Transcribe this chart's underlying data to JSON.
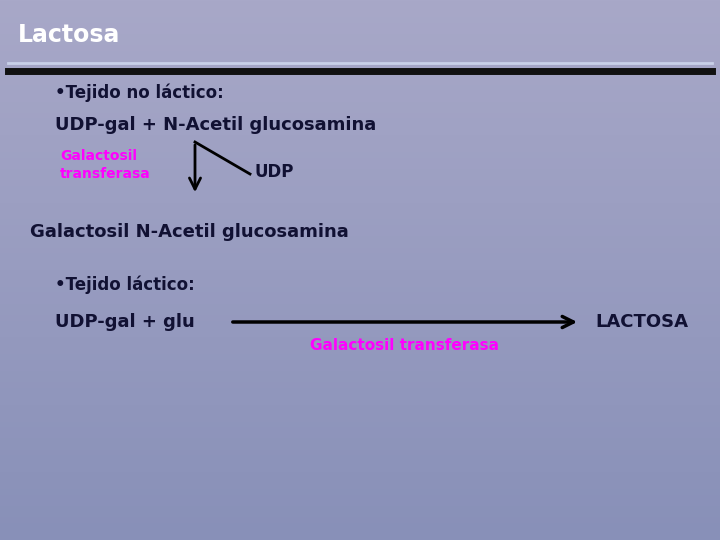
{
  "title": "Lactosa",
  "bg_top": "#9999bb",
  "bg_bottom": "#aaaacc",
  "title_color": "#ffffff",
  "dark_text_color": "#111133",
  "magenta_color": "#ff00ff",
  "bullet1": "•Tejido no láctico:",
  "udp_gal_line": "UDP-gal + N-Acetil glucosamina",
  "galactosil_label": "Galactosil\ntransferasa",
  "udp_label": "UDP",
  "product_line": "Galactosil N-Acetil glucosamina",
  "bullet2": "•Tejido láctico:",
  "udp_gal2": "UDP-gal + glu",
  "lactosa": "LACTOSA",
  "galactosil2": "Galactosil transferasa",
  "sep_white_color": "#c0c8e8",
  "sep_black_color": "#111111"
}
